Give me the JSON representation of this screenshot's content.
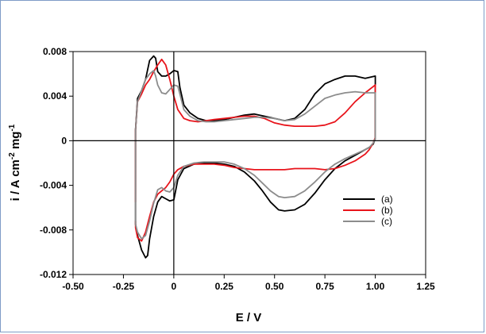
{
  "chart_data": {
    "type": "line",
    "title": "",
    "xlabel": "E / V",
    "ylabel_parts": [
      "i / A cm",
      "-2",
      " mg",
      "-1"
    ],
    "xlim": [
      -0.5,
      1.25
    ],
    "ylim": [
      -0.012,
      0.008
    ],
    "x_ticks": [
      {
        "value": -0.5,
        "label": "-0.50"
      },
      {
        "value": -0.25,
        "label": "-0.25"
      },
      {
        "value": 0,
        "label": "0"
      },
      {
        "value": 0.25,
        "label": "0.25"
      },
      {
        "value": 0.5,
        "label": "0.50"
      },
      {
        "value": 0.75,
        "label": "0.75"
      },
      {
        "value": 1.0,
        "label": "1.00"
      },
      {
        "value": 1.25,
        "label": "1.25"
      }
    ],
    "y_ticks": [
      {
        "value": 0.008,
        "label": "0.008"
      },
      {
        "value": 0.004,
        "label": "0.004"
      },
      {
        "value": 0,
        "label": "0"
      },
      {
        "value": -0.004,
        "label": "-0.004"
      },
      {
        "value": -0.008,
        "label": "-0.008"
      },
      {
        "value": -0.012,
        "label": "-0.012"
      }
    ],
    "zero_lines": true,
    "grid": false,
    "legend_position": "lower-right",
    "series": [
      {
        "name": "(a)",
        "color": "#000000",
        "x": [
          -0.19,
          -0.19,
          -0.18,
          -0.16,
          -0.14,
          -0.12,
          -0.1,
          -0.09,
          -0.08,
          -0.06,
          -0.04,
          -0.02,
          0,
          0.02,
          0.03,
          0.05,
          0.08,
          0.12,
          0.16,
          0.2,
          0.25,
          0.3,
          0.35,
          0.4,
          0.45,
          0.5,
          0.55,
          0.6,
          0.65,
          0.7,
          0.75,
          0.8,
          0.85,
          0.9,
          0.95,
          1.0,
          1.0,
          0.99,
          0.97,
          0.95,
          0.9,
          0.85,
          0.8,
          0.75,
          0.7,
          0.65,
          0.6,
          0.55,
          0.52,
          0.48,
          0.44,
          0.4,
          0.35,
          0.3,
          0.25,
          0.2,
          0.15,
          0.1,
          0.05,
          0.02,
          0,
          -0.02,
          -0.04,
          -0.06,
          -0.08,
          -0.1,
          -0.12,
          -0.13,
          -0.14,
          -0.16,
          -0.18,
          -0.19,
          -0.19
        ],
        "y": [
          -0.0055,
          0.001,
          0.0038,
          0.0045,
          0.0055,
          0.0072,
          0.0076,
          0.0074,
          0.0062,
          0.0058,
          0.0058,
          0.006,
          0.0063,
          0.0062,
          0.0048,
          0.0032,
          0.0025,
          0.002,
          0.0018,
          0.0018,
          0.0019,
          0.0021,
          0.0023,
          0.0024,
          0.0022,
          0.002,
          0.0018,
          0.002,
          0.0028,
          0.0042,
          0.0051,
          0.0055,
          0.0058,
          0.0058,
          0.0056,
          0.0058,
          0.0002,
          -0.0003,
          -0.0006,
          -0.0008,
          -0.0013,
          -0.0018,
          -0.0025,
          -0.0035,
          -0.0047,
          -0.0057,
          -0.0062,
          -0.0063,
          -0.0062,
          -0.0055,
          -0.0045,
          -0.0036,
          -0.0028,
          -0.0023,
          -0.0021,
          -0.002,
          -0.002,
          -0.0021,
          -0.0025,
          -0.0035,
          -0.0053,
          -0.0054,
          -0.0052,
          -0.005,
          -0.0055,
          -0.0068,
          -0.0088,
          -0.0103,
          -0.0105,
          -0.0098,
          -0.0085,
          -0.0075,
          -0.0055
        ]
      },
      {
        "name": "(b)",
        "color": "#e8141b",
        "x": [
          -0.19,
          -0.19,
          -0.18,
          -0.16,
          -0.14,
          -0.12,
          -0.1,
          -0.08,
          -0.06,
          -0.04,
          -0.02,
          0,
          0.02,
          0.05,
          0.08,
          0.12,
          0.16,
          0.2,
          0.25,
          0.3,
          0.35,
          0.4,
          0.45,
          0.5,
          0.55,
          0.6,
          0.65,
          0.7,
          0.75,
          0.8,
          0.85,
          0.9,
          0.95,
          1.0,
          1.0,
          0.99,
          0.97,
          0.95,
          0.9,
          0.85,
          0.8,
          0.75,
          0.7,
          0.65,
          0.6,
          0.55,
          0.5,
          0.45,
          0.4,
          0.35,
          0.3,
          0.25,
          0.2,
          0.15,
          0.1,
          0.05,
          0.02,
          0,
          -0.02,
          -0.04,
          -0.06,
          -0.08,
          -0.1,
          -0.12,
          -0.14,
          -0.16,
          -0.18,
          -0.19,
          -0.19
        ],
        "y": [
          -0.0055,
          0.001,
          0.0035,
          0.0042,
          0.005,
          0.0055,
          0.0062,
          0.0068,
          0.0073,
          0.0068,
          0.0055,
          0.004,
          0.0028,
          0.002,
          0.0018,
          0.0017,
          0.0018,
          0.0019,
          0.002,
          0.0021,
          0.0022,
          0.0022,
          0.002,
          0.0016,
          0.0014,
          0.0013,
          0.0013,
          0.0013,
          0.0014,
          0.0017,
          0.0025,
          0.0035,
          0.0043,
          0.005,
          0.0003,
          -0.0002,
          -0.0008,
          -0.0012,
          -0.0018,
          -0.0022,
          -0.0025,
          -0.0026,
          -0.0025,
          -0.0025,
          -0.0025,
          -0.0026,
          -0.0026,
          -0.0026,
          -0.0026,
          -0.0025,
          -0.0024,
          -0.0022,
          -0.0021,
          -0.0021,
          -0.0021,
          -0.0023,
          -0.0026,
          -0.003,
          -0.0037,
          -0.0042,
          -0.0045,
          -0.0048,
          -0.0055,
          -0.0068,
          -0.0082,
          -0.009,
          -0.0087,
          -0.0078,
          -0.0072
        ]
      },
      {
        "name": "(c)",
        "color": "#8c8c8c",
        "x": [
          -0.19,
          -0.19,
          -0.18,
          -0.16,
          -0.14,
          -0.12,
          -0.1,
          -0.09,
          -0.08,
          -0.06,
          -0.04,
          -0.02,
          0,
          0.02,
          0.03,
          0.05,
          0.08,
          0.12,
          0.16,
          0.2,
          0.25,
          0.3,
          0.35,
          0.4,
          0.45,
          0.5,
          0.55,
          0.6,
          0.65,
          0.7,
          0.75,
          0.8,
          0.85,
          0.9,
          0.95,
          1.0,
          1.0,
          0.99,
          0.97,
          0.95,
          0.9,
          0.85,
          0.8,
          0.75,
          0.7,
          0.65,
          0.6,
          0.55,
          0.52,
          0.48,
          0.44,
          0.4,
          0.35,
          0.3,
          0.25,
          0.2,
          0.15,
          0.1,
          0.05,
          0.02,
          0,
          -0.02,
          -0.04,
          -0.06,
          -0.08,
          -0.1,
          -0.12,
          -0.14,
          -0.16,
          -0.18,
          -0.19,
          -0.19
        ],
        "y": [
          -0.0055,
          0.001,
          0.0035,
          0.0045,
          0.0055,
          0.006,
          0.0063,
          0.0058,
          0.005,
          0.0043,
          0.0042,
          0.0046,
          0.005,
          0.0049,
          0.0042,
          0.0028,
          0.0022,
          0.0018,
          0.0017,
          0.0017,
          0.0018,
          0.0019,
          0.002,
          0.0021,
          0.0021,
          0.002,
          0.0018,
          0.0019,
          0.0024,
          0.0031,
          0.0038,
          0.0041,
          0.0043,
          0.0044,
          0.0043,
          0.0043,
          0.0002,
          -0.0002,
          -0.0006,
          -0.0008,
          -0.0012,
          -0.0016,
          -0.0021,
          -0.0028,
          -0.0037,
          -0.0045,
          -0.005,
          -0.0051,
          -0.005,
          -0.0045,
          -0.0038,
          -0.0031,
          -0.0025,
          -0.0021,
          -0.0019,
          -0.0019,
          -0.0019,
          -0.002,
          -0.0023,
          -0.0031,
          -0.0042,
          -0.0046,
          -0.0045,
          -0.0042,
          -0.0044,
          -0.0056,
          -0.0072,
          -0.0085,
          -0.0088,
          -0.0082,
          -0.0075,
          -0.0055
        ]
      }
    ]
  }
}
